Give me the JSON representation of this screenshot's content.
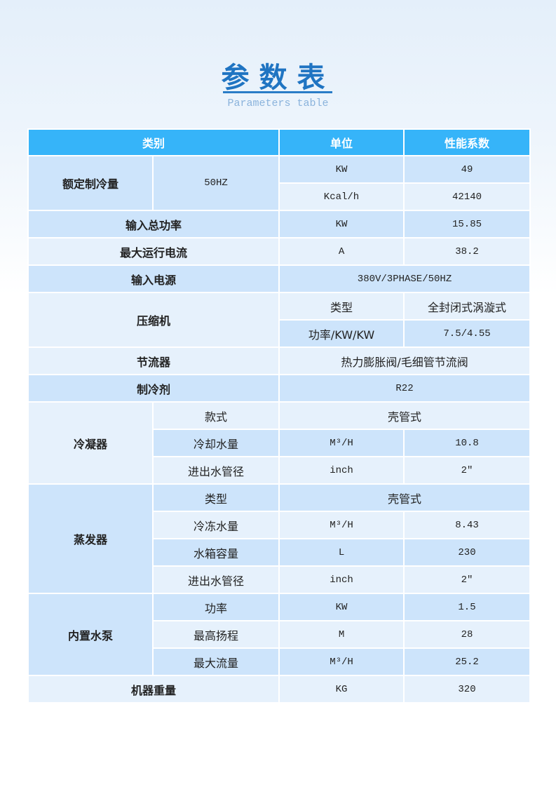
{
  "header": {
    "title": "参数表",
    "subtitle": "Parameters table"
  },
  "colors": {
    "title": "#1f74c2",
    "table_header": "#36b4f9",
    "row_dark": "#cde4fb",
    "row_light": "#e6f1fc"
  },
  "table": {
    "columns": [
      "类别",
      "单位",
      "性能系数"
    ],
    "rows": [
      [
        {
          "t": "额定制冷量",
          "rs": 2,
          "b": 1
        },
        {
          "t": "50HZ",
          "rs": 2,
          "m": 1
        },
        {
          "t": "KW",
          "m": 1
        },
        {
          "t": "49",
          "m": 1
        }
      ],
      [
        {
          "t": "Kcal/h",
          "m": 1
        },
        {
          "t": "42140",
          "m": 1
        }
      ],
      [
        {
          "t": "输入总功率",
          "cs": 2,
          "b": 1
        },
        {
          "t": "KW",
          "m": 1
        },
        {
          "t": "15.85",
          "m": 1
        }
      ],
      [
        {
          "t": "最大运行电流",
          "cs": 2,
          "b": 1
        },
        {
          "t": "A",
          "m": 1
        },
        {
          "t": "38.2",
          "m": 1
        }
      ],
      [
        {
          "t": "输入电源",
          "cs": 2,
          "b": 1
        },
        {
          "t": "380V/3PHASE/50HZ",
          "cs": 2,
          "m": 1
        }
      ],
      [
        {
          "t": "压缩机",
          "cs": 2,
          "rs": 2,
          "b": 1
        },
        {
          "t": "类型",
          "c": 1
        },
        {
          "t": "全封闭式涡漩式",
          "c": 1
        }
      ],
      [
        {
          "t": "功率/KW/KW",
          "c": 1
        },
        {
          "t": "7.5/4.55",
          "m": 1
        }
      ],
      [
        {
          "t": "节流器",
          "cs": 2,
          "b": 1
        },
        {
          "t": "热力膨胀阀/毛细管节流阀",
          "cs": 2,
          "c": 1
        }
      ],
      [
        {
          "t": "制冷剂",
          "cs": 2,
          "b": 1
        },
        {
          "t": "R22",
          "cs": 2,
          "m": 1
        }
      ],
      [
        {
          "t": "冷凝器",
          "rs": 3,
          "b": 1
        },
        {
          "t": "款式",
          "c": 1
        },
        {
          "t": "壳管式",
          "cs": 2,
          "c": 1
        }
      ],
      [
        {
          "t": "冷却水量",
          "c": 1
        },
        {
          "t": "M³/H",
          "m": 1
        },
        {
          "t": "10.8",
          "m": 1
        }
      ],
      [
        {
          "t": "进出水管径",
          "c": 1
        },
        {
          "t": "inch",
          "m": 1
        },
        {
          "t": "2″",
          "m": 1
        }
      ],
      [
        {
          "t": "蒸发器",
          "rs": 4,
          "b": 1
        },
        {
          "t": "类型",
          "c": 1
        },
        {
          "t": "壳管式",
          "cs": 2,
          "c": 1
        }
      ],
      [
        {
          "t": "冷冻水量",
          "c": 1
        },
        {
          "t": "M³/H",
          "m": 1
        },
        {
          "t": "8.43",
          "m": 1
        }
      ],
      [
        {
          "t": "水箱容量",
          "c": 1
        },
        {
          "t": "L",
          "m": 1
        },
        {
          "t": "230",
          "m": 1
        }
      ],
      [
        {
          "t": "进出水管径",
          "c": 1
        },
        {
          "t": "inch",
          "m": 1
        },
        {
          "t": "2″",
          "m": 1
        }
      ],
      [
        {
          "t": "内置水泵",
          "rs": 3,
          "b": 1
        },
        {
          "t": "功率",
          "c": 1
        },
        {
          "t": "KW",
          "m": 1
        },
        {
          "t": "1.5",
          "m": 1
        }
      ],
      [
        {
          "t": "最高扬程",
          "c": 1
        },
        {
          "t": "M",
          "m": 1
        },
        {
          "t": "28",
          "m": 1
        }
      ],
      [
        {
          "t": "最大流量",
          "c": 1
        },
        {
          "t": "M³/H",
          "m": 1
        },
        {
          "t": "25.2",
          "m": 1
        }
      ],
      [
        {
          "t": "机器重量",
          "cs": 2,
          "b": 1
        },
        {
          "t": "KG",
          "m": 1
        },
        {
          "t": "320",
          "m": 1
        }
      ]
    ]
  }
}
